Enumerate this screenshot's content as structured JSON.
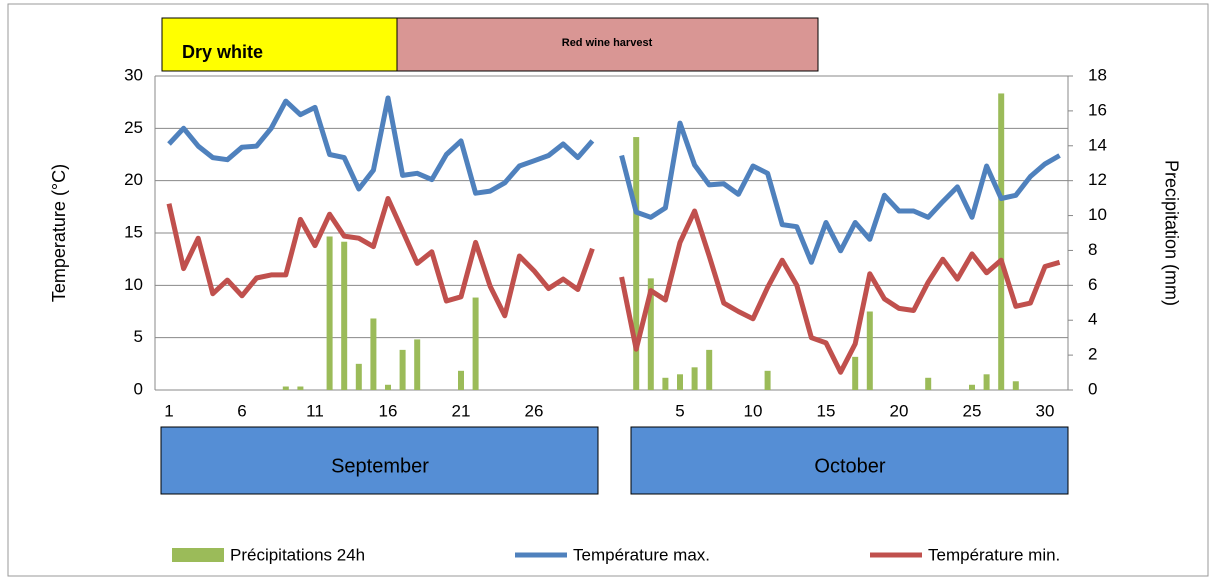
{
  "chart_data": {
    "type": "bar-line",
    "y_label": "Temperature (°C)",
    "y2_label": "Precipitation (mm)",
    "categories": [
      "1",
      null,
      null,
      null,
      null,
      "6",
      null,
      null,
      null,
      null,
      "11",
      null,
      null,
      null,
      null,
      "16",
      null,
      null,
      null,
      null,
      "21",
      null,
      null,
      null,
      null,
      "26",
      null,
      null,
      null,
      null,
      null,
      null,
      null,
      null,
      null,
      "5",
      null,
      null,
      null,
      null,
      "10",
      null,
      null,
      null,
      null,
      "15",
      null,
      null,
      null,
      null,
      "20",
      null,
      null,
      null,
      null,
      "25",
      null,
      null,
      null,
      null,
      "30",
      null
    ],
    "months": [
      "September",
      "October"
    ],
    "harvest": [
      "Dry white",
      "Red wine harvest"
    ],
    "series": [
      {
        "name": "Précipitations 24h",
        "type": "bar",
        "axis": "y2",
        "color": "#9bbb59",
        "values": [
          0,
          0,
          0,
          0,
          0,
          0,
          0,
          0,
          0.2,
          0.2,
          0,
          8.8,
          8.5,
          1.5,
          4.1,
          0.3,
          2.3,
          2.9,
          0,
          0,
          1.1,
          5.3,
          0,
          0,
          0,
          0,
          0,
          0,
          0,
          0,
          null,
          0,
          14.5,
          6.4,
          0.7,
          0.9,
          1.3,
          2.3,
          0,
          0,
          0,
          1.1,
          0,
          0,
          0,
          0,
          0,
          1.9,
          4.5,
          0,
          0,
          0,
          0.7,
          0,
          0,
          0.3,
          0.9,
          17,
          0.5,
          0,
          0,
          0
        ]
      },
      {
        "name": "Température max.",
        "type": "line",
        "color": "#4f81bd",
        "values": [
          23.5,
          25,
          23.3,
          22.2,
          22,
          23.2,
          23.3,
          25,
          27.6,
          26.3,
          27,
          22.5,
          22.2,
          19.2,
          21,
          27.9,
          20.5,
          20.7,
          20.1,
          22.5,
          23.8,
          18.8,
          19,
          19.8,
          21.4,
          21.9,
          22.4,
          23.5,
          22.2,
          23.8,
          null,
          22.4,
          17,
          16.5,
          17.4,
          25.5,
          21.5,
          19.6,
          19.7,
          18.7,
          21.4,
          20.7,
          15.8,
          15.6,
          12.2,
          16,
          13.3,
          16,
          14.4,
          18.6,
          17.1,
          17.1,
          16.5,
          18,
          19.4,
          16.5,
          21.4,
          18.3,
          18.6,
          20.4,
          21.6,
          22.4
        ]
      },
      {
        "name": "Température min.",
        "type": "line",
        "color": "#c0504d",
        "values": [
          17.8,
          11.6,
          14.5,
          9.2,
          10.5,
          9,
          10.7,
          11,
          11,
          16.3,
          13.8,
          16.8,
          14.7,
          14.5,
          13.7,
          18.3,
          15.2,
          12.1,
          13.2,
          8.5,
          8.9,
          14.1,
          9.9,
          7.1,
          12.8,
          11.4,
          9.7,
          10.6,
          9.6,
          13.5,
          null,
          10.8,
          3.9,
          9.5,
          8.6,
          14.1,
          17.1,
          12.8,
          8.3,
          7.5,
          6.8,
          9.8,
          12.4,
          10,
          5,
          4.5,
          1.7,
          4.4,
          11.1,
          8.7,
          7.8,
          7.6,
          10.3,
          12.5,
          10.6,
          13,
          11.2,
          12.4,
          8,
          8.3,
          11.8,
          12.2
        ]
      }
    ],
    "ylim": [
      0,
      30
    ],
    "yticks": [
      0,
      5,
      10,
      15,
      20,
      25,
      30
    ],
    "y2lim": [
      0,
      18
    ],
    "y2ticks": [
      0,
      2,
      4,
      6,
      8,
      10,
      12,
      14,
      16,
      18
    ],
    "grid": true
  }
}
